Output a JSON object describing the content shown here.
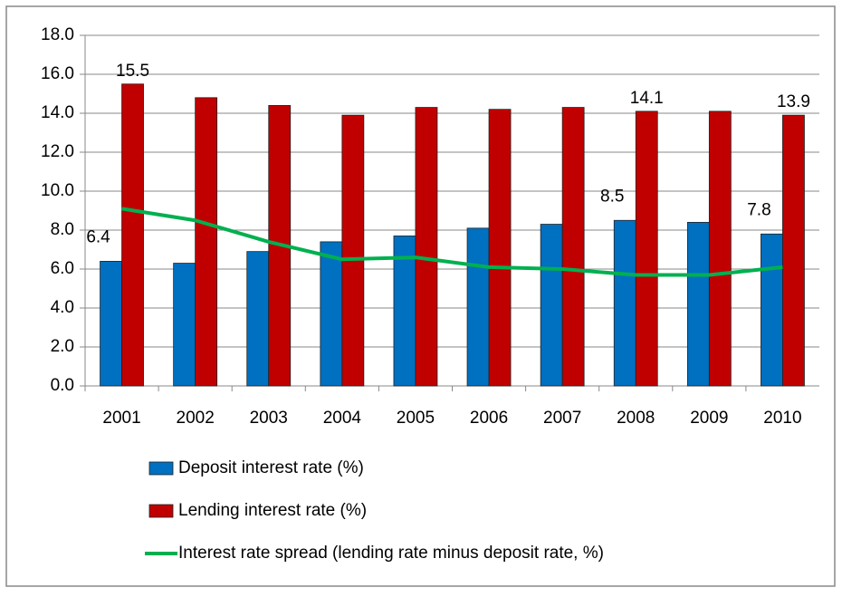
{
  "chart_data": {
    "type": "bar-line",
    "categories": [
      "2001",
      "2002",
      "2003",
      "2004",
      "2005",
      "2006",
      "2007",
      "2008",
      "2009",
      "2010"
    ],
    "series": [
      {
        "name": "Deposit interest rate (%)",
        "type": "bar",
        "color": "#0070c0",
        "values": [
          6.4,
          6.3,
          6.9,
          7.4,
          7.7,
          8.1,
          8.3,
          8.5,
          8.4,
          7.8
        ],
        "value_labels": [
          "6.4",
          null,
          null,
          null,
          null,
          null,
          null,
          "8.5",
          null,
          "7.8"
        ]
      },
      {
        "name": "Lending interest rate (%)",
        "type": "bar",
        "color": "#c00000",
        "values": [
          15.5,
          14.8,
          14.4,
          13.9,
          14.3,
          14.2,
          14.3,
          14.1,
          14.1,
          13.9
        ],
        "value_labels": [
          "15.5",
          null,
          null,
          null,
          null,
          null,
          null,
          "14.1",
          null,
          "13.9"
        ]
      },
      {
        "name": "Interest rate spread (lending rate minus deposit rate, %)",
        "type": "line",
        "color": "#00b050",
        "values": [
          9.1,
          8.5,
          7.4,
          6.5,
          6.6,
          6.1,
          6.0,
          5.7,
          5.7,
          6.1
        ]
      }
    ],
    "ylim": [
      0,
      18
    ],
    "yticks": [
      {
        "value": 0,
        "label": "0.0"
      },
      {
        "value": 2,
        "label": "2.0"
      },
      {
        "value": 4,
        "label": "4.0"
      },
      {
        "value": 6,
        "label": "6.0"
      },
      {
        "value": 8,
        "label": "8.0"
      },
      {
        "value": 10,
        "label": "10.0"
      },
      {
        "value": 12,
        "label": "12.0"
      },
      {
        "value": 14,
        "label": "14.0"
      },
      {
        "value": 16,
        "label": "16.0"
      },
      {
        "value": 18,
        "label": "18.0"
      }
    ],
    "grid": true,
    "legend": "bottom"
  }
}
